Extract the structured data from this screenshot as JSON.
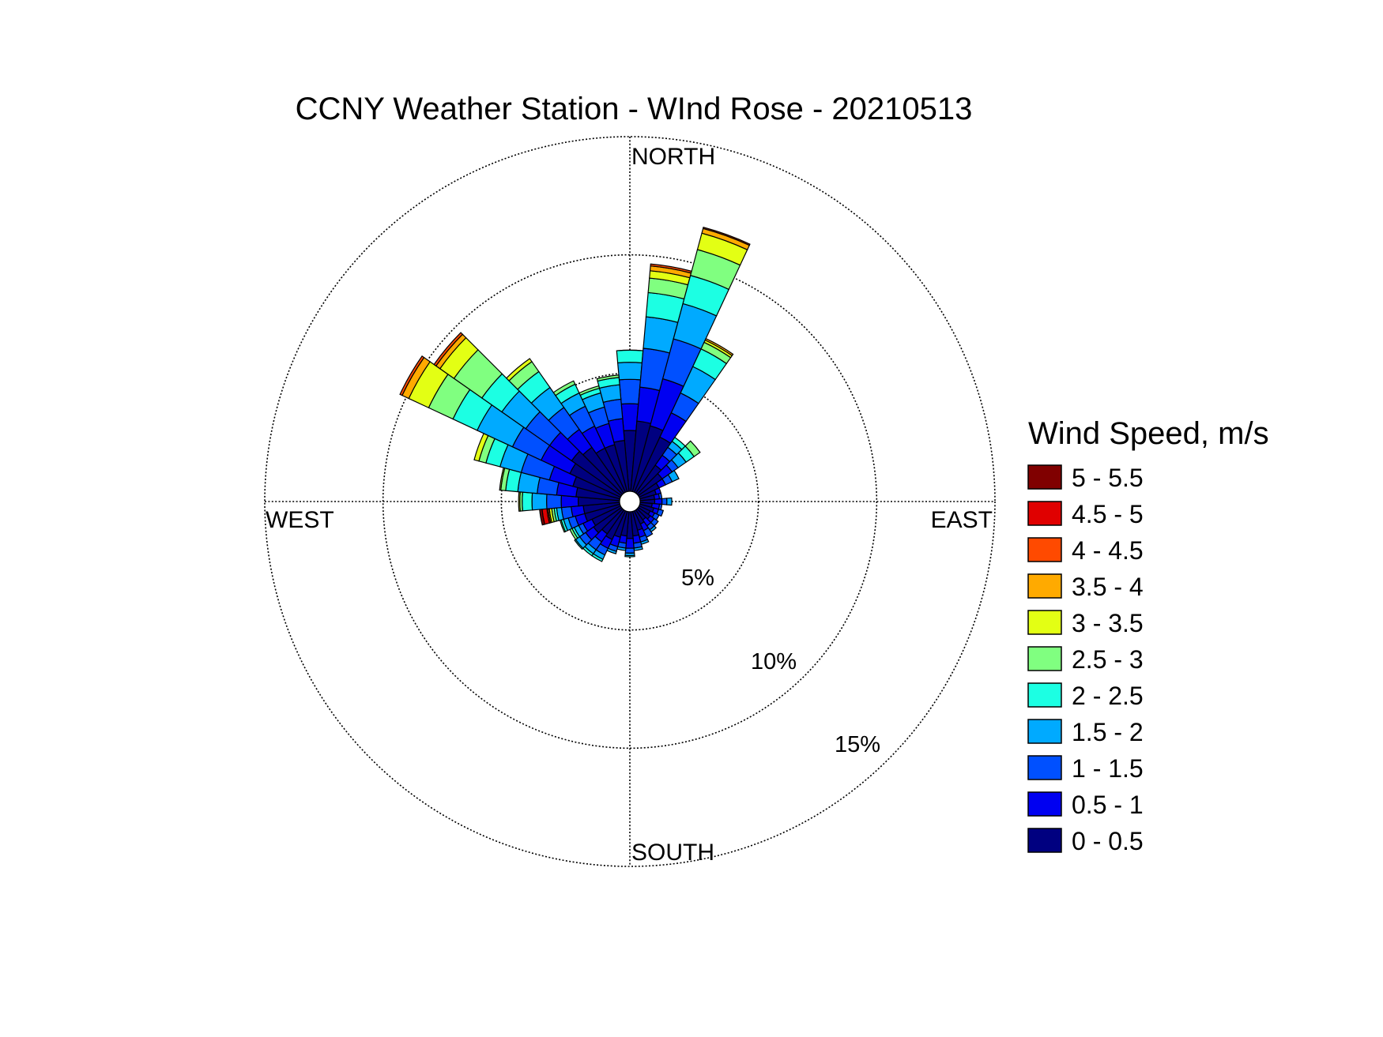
{
  "chart_data": {
    "type": "polar-stacked-bar",
    "title": "CCNY Weather Station - WInd Rose - 20210513",
    "direction_labels": {
      "north": "NORTH",
      "south": "SOUTH",
      "west": "WEST",
      "east": "EAST"
    },
    "radial_ticks": [
      {
        "value": 5,
        "label": "5%"
      },
      {
        "value": 10,
        "label": "10%"
      },
      {
        "value": 15,
        "label": "15%"
      }
    ],
    "radial_max": 15,
    "grid": true,
    "legend": {
      "title": "Wind Speed, m/s",
      "position": "right",
      "bins": [
        {
          "label": "5 - 5.5",
          "color": "#800000"
        },
        {
          "label": "4.5 - 5",
          "color": "#e00000"
        },
        {
          "label": "4 - 4.5",
          "color": "#ff4a00"
        },
        {
          "label": "3.5 - 4",
          "color": "#ffaa00"
        },
        {
          "label": "3 - 3.5",
          "color": "#e3ff14"
        },
        {
          "label": "2.5 - 3",
          "color": "#80ff80"
        },
        {
          "label": "2 - 2.5",
          "color": "#1cffe3"
        },
        {
          "label": "1.5 - 2",
          "color": "#00aaff"
        },
        {
          "label": "1 - 1.5",
          "color": "#0050ff"
        },
        {
          "label": "0.5 - 1",
          "color": "#0000f1"
        },
        {
          "label": "0 - 0.5",
          "color": "#000080"
        }
      ]
    },
    "direction_unit": "degrees clockwise from north",
    "sector_width": 10,
    "series_note_order": "cumulative frequency (%) per speed bin, bins ordered 0-0.5, 0.5-1, 1-1.5, 1.5-2, 2-2.5, 2.5-3, 3-3.5, 3.5-4, 4-4.5, 4.5-5, 5-5.5",
    "sectors": [
      {
        "direction": 0,
        "cumulative": [
          2.5,
          3.6,
          4.6,
          5.3,
          5.8,
          5.8
        ]
      },
      {
        "direction": 10,
        "cumulative": [
          2.9,
          4.3,
          5.9,
          7.2,
          8.2,
          8.8,
          9.1,
          9.3,
          9.38
        ]
      },
      {
        "direction": 20,
        "cumulative": [
          2.8,
          4.8,
          6.5,
          8.0,
          9.2,
          10.3,
          11.0,
          11.2,
          11.25
        ]
      },
      {
        "direction": 30,
        "cumulative": [
          2.5,
          3.6,
          4.5,
          5.7,
          6.5,
          6.8,
          6.9,
          6.97
        ]
      },
      {
        "direction": 40,
        "cumulative": [
          1.4,
          1.9,
          2.3,
          2.6,
          2.8
        ]
      },
      {
        "direction": 50,
        "cumulative": [
          1.2,
          1.7,
          2.0,
          2.4,
          2.8,
          3.1
        ]
      },
      {
        "direction": 60,
        "cumulative": [
          0.9,
          1.2,
          1.5,
          1.8
        ]
      },
      {
        "direction": 70,
        "cumulative": [
          0.7,
          0.9
        ]
      },
      {
        "direction": 80,
        "cumulative": [
          0.6,
          0.8,
          0.9
        ]
      },
      {
        "direction": 90,
        "cumulative": [
          0.6,
          0.9,
          1.1,
          1.3
        ]
      },
      {
        "direction": 100,
        "cumulative": [
          0.5,
          0.8,
          0.9
        ]
      },
      {
        "direction": 110,
        "cumulative": [
          0.6,
          0.8,
          1.0
        ]
      },
      {
        "direction": 120,
        "cumulative": [
          0.5,
          0.7,
          0.9
        ]
      },
      {
        "direction": 130,
        "cumulative": [
          0.6,
          0.8,
          1.0
        ]
      },
      {
        "direction": 140,
        "cumulative": [
          0.5,
          0.8,
          1.0,
          1.1
        ]
      },
      {
        "direction": 150,
        "cumulative": [
          0.6,
          0.9,
          1.2
        ]
      },
      {
        "direction": 160,
        "cumulative": [
          0.8,
          1.1,
          1.3,
          1.4
        ]
      },
      {
        "direction": 170,
        "cumulative": [
          1.0,
          1.3,
          1.5,
          1.6
        ]
      },
      {
        "direction": 180,
        "cumulative": [
          1.1,
          1.5,
          1.7,
          1.8,
          1.85
        ]
      },
      {
        "direction": 190,
        "cumulative": [
          1.0,
          1.3,
          1.5,
          1.6
        ]
      },
      {
        "direction": 200,
        "cumulative": [
          1.1,
          1.5,
          1.7,
          1.8
        ]
      },
      {
        "direction": 210,
        "cumulative": [
          1.3,
          1.7,
          2.0,
          2.2,
          2.3
        ]
      },
      {
        "direction": 220,
        "cumulative": [
          1.2,
          1.6,
          2.0,
          2.2,
          2.3
        ]
      },
      {
        "direction": 230,
        "cumulative": [
          1.4,
          1.8,
          2.1,
          2.3,
          2.35
        ]
      },
      {
        "direction": 240,
        "cumulative": [
          1.3,
          1.7,
          1.9,
          2.1,
          2.2,
          2.3
        ]
      },
      {
        "direction": 250,
        "cumulative": [
          1.5,
          1.9,
          2.2,
          2.4,
          2.5,
          2.55
        ]
      },
      {
        "direction": 260,
        "cumulative": [
          1.5,
          2.0,
          2.4,
          2.6,
          2.7,
          2.8,
          2.9,
          2.95,
          3.0,
          3.2,
          3.3
        ]
      },
      {
        "direction": 270,
        "cumulative": [
          1.7,
          2.4,
          3.0,
          3.6,
          4.0,
          4.1,
          4.15
        ]
      },
      {
        "direction": 280,
        "cumulative": [
          1.8,
          2.6,
          3.4,
          4.2,
          4.7,
          4.9,
          4.95
        ]
      },
      {
        "direction": 290,
        "cumulative": [
          2.0,
          3.0,
          4.2,
          5.1,
          5.7,
          6.0,
          6.2
        ]
      },
      {
        "direction": 300,
        "cumulative": [
          2.3,
          3.6,
          4.9,
          6.5,
          7.6,
          8.7,
          9.6,
          9.9,
          10.0
        ]
      },
      {
        "direction": 310,
        "cumulative": [
          2.5,
          3.6,
          4.8,
          6.0,
          7.0,
          8.4,
          9.1,
          9.3,
          9.4
        ]
      },
      {
        "direction": 320,
        "cumulative": [
          2.3,
          3.2,
          4.3,
          5.3,
          6.1,
          6.6,
          6.75
        ]
      },
      {
        "direction": 330,
        "cumulative": [
          2.0,
          3.0,
          3.9,
          4.5,
          4.9,
          5.05
        ]
      },
      {
        "direction": 340,
        "cumulative": [
          2.0,
          2.9,
          3.6,
          4.2,
          4.4,
          4.5
        ]
      },
      {
        "direction": 350,
        "cumulative": [
          2.1,
          3.0,
          3.8,
          4.4,
          4.7,
          4.8
        ]
      }
    ]
  }
}
